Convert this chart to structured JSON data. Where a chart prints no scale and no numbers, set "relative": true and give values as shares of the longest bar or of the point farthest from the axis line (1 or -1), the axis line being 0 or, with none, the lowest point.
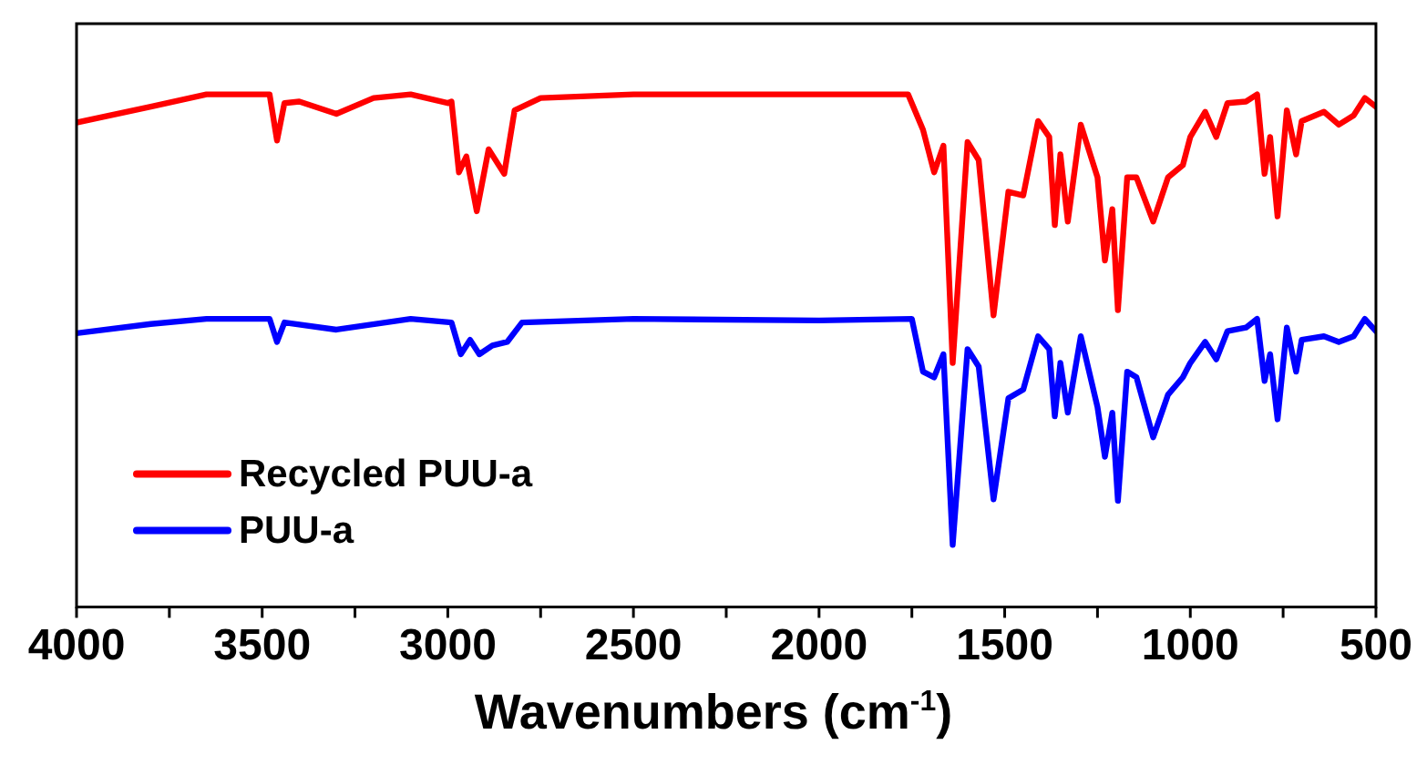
{
  "chart_data": {
    "type": "line",
    "xlabel": "Wavenumbers (cm$^{-1}$)",
    "relative": true,
    "xlim": [
      4000,
      500
    ],
    "xticks": [
      4000,
      {
        "value": 3750,
        "label": null
      },
      3500,
      {
        "value": 3250,
        "label": null
      },
      3000,
      {
        "value": 2750,
        "label": null
      },
      2500,
      {
        "value": 2250,
        "label": null
      },
      2000,
      {
        "value": 1750,
        "label": null
      },
      1500,
      {
        "value": 1250,
        "label": null
      },
      1000,
      {
        "value": 750,
        "label": null
      },
      500
    ],
    "grid": false,
    "legend": "bottom left",
    "marker": "none",
    "line_style": "solid",
    "tick_labels": "x",
    "series": [
      {
        "name": "Recycled PUU-a",
        "color": "#ff0000",
        "x": [
          4000,
          3800,
          3650,
          3480,
          3460,
          3440,
          3400,
          3300,
          3200,
          3100,
          3000,
          2990,
          2970,
          2950,
          2922,
          2890,
          2848,
          2820,
          2750,
          2500,
          2000,
          1760,
          1720,
          1690,
          1665,
          1640,
          1600,
          1570,
          1530,
          1490,
          1450,
          1410,
          1380,
          1365,
          1350,
          1330,
          1295,
          1250,
          1230,
          1210,
          1195,
          1170,
          1145,
          1100,
          1060,
          1020,
          1000,
          960,
          930,
          900,
          850,
          820,
          800,
          785,
          765,
          740,
          715,
          700,
          640,
          600,
          560,
          530,
          500
        ],
        "values": [
          0.945,
          0.976,
          1.0,
          1.0,
          0.91,
          0.983,
          0.986,
          0.962,
          0.993,
          1.0,
          0.983,
          0.986,
          0.848,
          0.879,
          0.772,
          0.893,
          0.845,
          0.969,
          0.993,
          1.0,
          1.0,
          1.0,
          0.931,
          0.848,
          0.9,
          0.476,
          0.907,
          0.872,
          0.569,
          0.81,
          0.803,
          0.948,
          0.917,
          0.745,
          0.883,
          0.752,
          0.941,
          0.838,
          0.676,
          0.776,
          0.579,
          0.838,
          0.838,
          0.752,
          0.838,
          0.862,
          0.917,
          0.966,
          0.917,
          0.983,
          0.986,
          1.0,
          0.845,
          0.917,
          0.762,
          0.969,
          0.883,
          0.948,
          0.966,
          0.941,
          0.959,
          0.993,
          0.976
        ]
      },
      {
        "name": "PUU-a",
        "color": "#0000ff",
        "x": [
          4000,
          3800,
          3650,
          3480,
          3460,
          3440,
          3300,
          3100,
          2990,
          2965,
          2940,
          2915,
          2880,
          2840,
          2800,
          2500,
          2000,
          1750,
          1720,
          1690,
          1665,
          1640,
          1600,
          1570,
          1530,
          1490,
          1450,
          1410,
          1380,
          1365,
          1350,
          1330,
          1295,
          1250,
          1230,
          1210,
          1195,
          1170,
          1145,
          1100,
          1060,
          1020,
          1000,
          960,
          930,
          900,
          850,
          820,
          800,
          785,
          765,
          740,
          715,
          700,
          640,
          600,
          560,
          530,
          500
        ],
        "values": [
          0.534,
          0.552,
          0.562,
          0.562,
          0.517,
          0.555,
          0.541,
          0.562,
          0.555,
          0.493,
          0.521,
          0.493,
          0.51,
          0.517,
          0.555,
          0.562,
          0.559,
          0.562,
          0.459,
          0.448,
          0.493,
          0.121,
          0.503,
          0.469,
          0.21,
          0.407,
          0.424,
          0.528,
          0.503,
          0.372,
          0.476,
          0.379,
          0.528,
          0.39,
          0.293,
          0.379,
          0.207,
          0.459,
          0.448,
          0.331,
          0.414,
          0.448,
          0.476,
          0.517,
          0.483,
          0.538,
          0.545,
          0.562,
          0.441,
          0.493,
          0.366,
          0.545,
          0.459,
          0.521,
          0.528,
          0.517,
          0.528,
          0.562,
          0.538
        ]
      }
    ]
  }
}
